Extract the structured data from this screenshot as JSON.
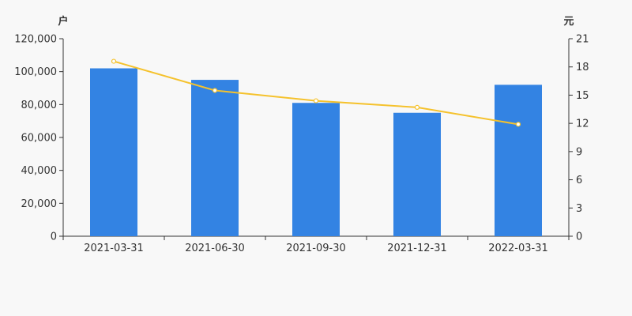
{
  "chart_data": {
    "type": "bar",
    "categories": [
      "2021-03-31",
      "2021-06-30",
      "2021-09-30",
      "2021-12-31",
      "2022-03-31"
    ],
    "series": [
      {
        "type": "bar",
        "axis": "left",
        "values": [
          102000,
          95000,
          81000,
          75000,
          92000
        ]
      },
      {
        "type": "line",
        "axis": "right",
        "values": [
          18.6,
          15.5,
          14.4,
          13.7,
          11.9
        ]
      }
    ],
    "y_left": {
      "unit": "户",
      "range": [
        0,
        120000
      ],
      "ticks": [
        0,
        20000,
        40000,
        60000,
        80000,
        100000,
        120000
      ],
      "tick_labels": [
        "0",
        "20,000",
        "40,000",
        "60,000",
        "80,000",
        "100,000",
        "120,000"
      ]
    },
    "y_right": {
      "unit": "元",
      "range": [
        0,
        21
      ],
      "ticks": [
        0,
        3,
        6,
        9,
        12,
        15,
        18,
        21
      ],
      "tick_labels": [
        "0",
        "3",
        "6",
        "9",
        "12",
        "15",
        "18",
        "21"
      ]
    },
    "grid": false,
    "legend": "none",
    "colors": {
      "bar": "#3383e3",
      "line": "#f5c22d",
      "point_fill": "#ffffff",
      "axis": "#333333",
      "background": "#f8f8f8"
    }
  }
}
